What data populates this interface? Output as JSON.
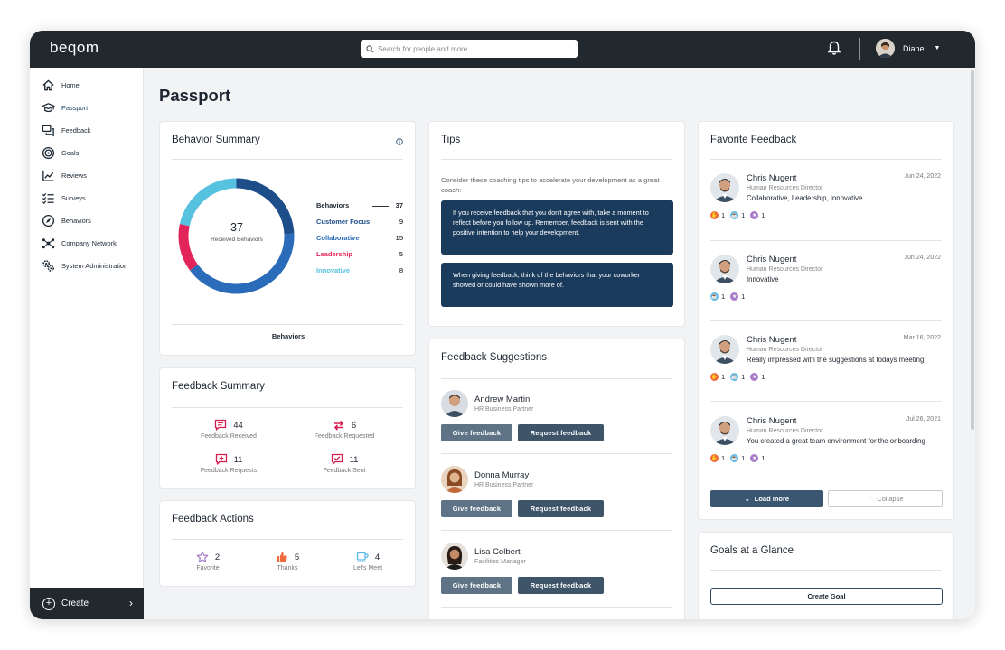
{
  "app": {
    "logo": "beqom"
  },
  "search": {
    "placeholder": "Search for people and more..."
  },
  "user": {
    "name": "Diane"
  },
  "sidebar": {
    "items": [
      {
        "label": "Home",
        "icon": "home-icon"
      },
      {
        "label": "Passport",
        "icon": "graduation-cap-icon",
        "active": true
      },
      {
        "label": "Feedback",
        "icon": "chat-bubbles-icon"
      },
      {
        "label": "Goals",
        "icon": "target-icon"
      },
      {
        "label": "Reviews",
        "icon": "line-chart-icon"
      },
      {
        "label": "Surveys",
        "icon": "checklist-icon"
      },
      {
        "label": "Behaviors",
        "icon": "compass-icon"
      },
      {
        "label": "Company Network",
        "icon": "network-icon"
      },
      {
        "label": "System Administration",
        "icon": "gears-icon"
      }
    ],
    "create_label": "Create"
  },
  "page": {
    "title": "Passport"
  },
  "behavior_summary": {
    "title": "Behavior Summary",
    "total": "37",
    "total_label": "Received Behaviors",
    "footer": "Behaviors",
    "header": {
      "label": "Behaviors",
      "value": "37"
    },
    "rows": [
      {
        "label": "Customer Focus",
        "value": "9",
        "color": "#1d4e8a"
      },
      {
        "label": "Collaborative",
        "value": "15",
        "color": "#2a6cba"
      },
      {
        "label": "Leadership",
        "value": "5",
        "color": "#e3245a"
      },
      {
        "label": "Innovative",
        "value": "8",
        "color": "#57c1e0"
      }
    ]
  },
  "feedback_summary": {
    "title": "Feedback Summary",
    "items": [
      {
        "value": "44",
        "label": "Feedback Received",
        "icon": "chat-received-icon"
      },
      {
        "value": "6",
        "label": "Feedback Requested",
        "icon": "exchange-arrows-icon"
      },
      {
        "value": "11",
        "label": "Feedback Requests",
        "icon": "chat-plus-icon"
      },
      {
        "value": "11",
        "label": "Feedback Sent",
        "icon": "chat-check-icon"
      }
    ]
  },
  "feedback_actions": {
    "title": "Feedback Actions",
    "items": [
      {
        "value": "2",
        "label": "Favorite",
        "icon": "star-icon"
      },
      {
        "value": "5",
        "label": "Thanks",
        "icon": "thumbs-up-icon"
      },
      {
        "value": "4",
        "label": "Let's Meet",
        "icon": "coffee-cup-icon"
      }
    ]
  },
  "tips": {
    "title": "Tips",
    "intro": "Consider these coaching tips to accelerate your development as a great coach:",
    "items": [
      "If you receive feedback that you don't agree with, take a moment to reflect before you follow up. Remember, feedback is sent with the positive intention to help your development.",
      "When giving feedback, think of the behaviors that your coworker showed or could have shown more of."
    ]
  },
  "suggestions": {
    "title": "Feedback Suggestions",
    "give_label": "Give feedback",
    "request_label": "Request feedback",
    "people": [
      {
        "name": "Andrew Martin",
        "role": "HR Business Partner"
      },
      {
        "name": "Donna Murray",
        "role": "HR Business Partner"
      },
      {
        "name": "Lisa Colbert",
        "role": "Facilities Manager"
      }
    ]
  },
  "favorite_feedback": {
    "title": "Favorite Feedback",
    "load_more": "Load more",
    "collapse": "Collapse",
    "items": [
      {
        "name": "Chris Nugent",
        "role": "Human Resources Director",
        "date": "Jun 24, 2022",
        "text": "Collaborative, Leadership, Innovative",
        "badges": [
          {
            "kind": "thanks",
            "count": "1"
          },
          {
            "kind": "meet",
            "count": "1"
          },
          {
            "kind": "favorite",
            "count": "1"
          }
        ]
      },
      {
        "name": "Chris Nugent",
        "role": "Human Resources Director",
        "date": "Jun 24, 2022",
        "text": "Innovative",
        "badges": [
          {
            "kind": "meet",
            "count": "1"
          },
          {
            "kind": "favorite",
            "count": "1"
          }
        ]
      },
      {
        "name": "Chris Nugent",
        "role": "Human Resources Director",
        "date": "Mar 16, 2022",
        "text": "Really impressed with the suggestions at todays meeting",
        "badges": [
          {
            "kind": "thanks",
            "count": "1"
          },
          {
            "kind": "meet",
            "count": "1"
          },
          {
            "kind": "favorite",
            "count": "1"
          }
        ]
      },
      {
        "name": "Chris Nugent",
        "role": "Human Resources Director",
        "date": "Jul 26, 2021",
        "text": "You created a great team environment for the onboarding",
        "badges": [
          {
            "kind": "thanks",
            "count": "1"
          },
          {
            "kind": "meet",
            "count": "1"
          },
          {
            "kind": "favorite",
            "count": "1"
          }
        ]
      }
    ]
  },
  "goals": {
    "title": "Goals at a Glance",
    "create_label": "Create Goal"
  },
  "colors": {
    "topbar": "#21292f",
    "tip_box": "#1a3b5b",
    "button": "#5e7486",
    "thanks": "#f06b3c",
    "meet": "#5bb8e6",
    "favorite": "#a77bc8"
  }
}
